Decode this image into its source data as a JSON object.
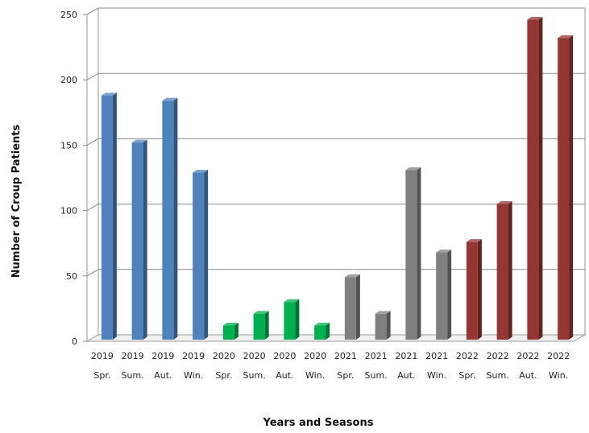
{
  "chart_data": {
    "type": "bar",
    "title": "",
    "xlabel": "Years and Seasons",
    "ylabel": "Number of Croup Patients",
    "ylim": [
      0,
      250
    ],
    "yticks": [
      0,
      50,
      100,
      150,
      200,
      250
    ],
    "grid": true,
    "legend": "none",
    "categories": [
      {
        "year": "2019",
        "season": "Spr.",
        "value": 188,
        "color": "#4F81BD"
      },
      {
        "year": "2019",
        "season": "Sum.",
        "value": 152,
        "color": "#4F81BD"
      },
      {
        "year": "2019",
        "season": "Aut.",
        "value": 184,
        "color": "#4F81BD"
      },
      {
        "year": "2019",
        "season": "Win.",
        "value": 129,
        "color": "#4F81BD"
      },
      {
        "year": "2020",
        "season": "Spr.",
        "value": 12,
        "color": "#00B050"
      },
      {
        "year": "2020",
        "season": "Sum.",
        "value": 21,
        "color": "#00B050"
      },
      {
        "year": "2020",
        "season": "Aut.",
        "value": 30,
        "color": "#00B050"
      },
      {
        "year": "2020",
        "season": "Win.",
        "value": 12,
        "color": "#00B050"
      },
      {
        "year": "2021",
        "season": "Spr.",
        "value": 49,
        "color": "#808080"
      },
      {
        "year": "2021",
        "season": "Sum.",
        "value": 21,
        "color": "#808080"
      },
      {
        "year": "2021",
        "season": "Aut.",
        "value": 131,
        "color": "#808080"
      },
      {
        "year": "2021",
        "season": "Win.",
        "value": 68,
        "color": "#808080"
      },
      {
        "year": "2022",
        "season": "Spr.",
        "value": 76,
        "color": "#943634"
      },
      {
        "year": "2022",
        "season": "Sum.",
        "value": 105,
        "color": "#943634"
      },
      {
        "year": "2022",
        "season": "Aut.",
        "value": 246,
        "color": "#943634"
      },
      {
        "year": "2022",
        "season": "Win.",
        "value": 232,
        "color": "#943634"
      }
    ]
  }
}
